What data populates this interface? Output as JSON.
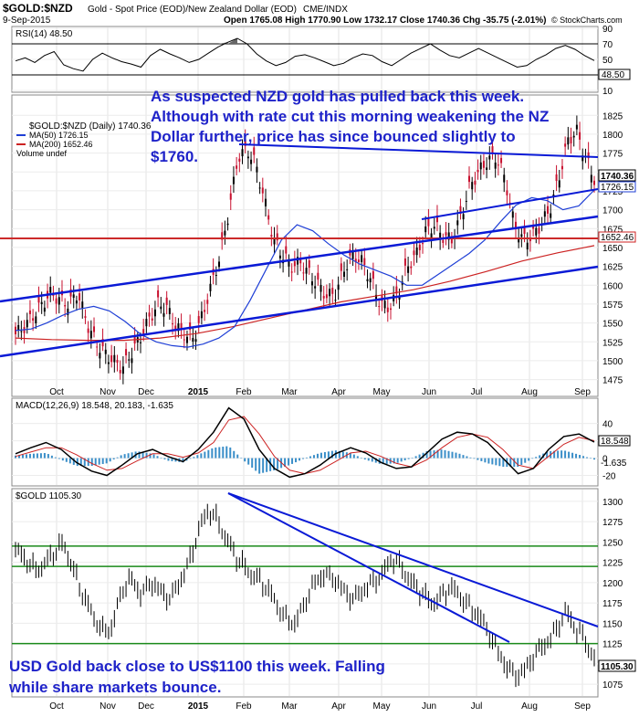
{
  "header": {
    "ticker": "$GOLD:$NZD",
    "description": "Gold - Spot Price (EOD)/New Zealand Dollar (EOD)",
    "exchange": "CME/INDX",
    "date": "9-Sep-2015",
    "ohlc": "Open 1765.08  High 1770.90  Low 1732.17  Close 1740.36  Chg -35.75 (-2.01%)",
    "brand": "© StockCharts.com"
  },
  "colors": {
    "ma50": "#1f3fd6",
    "ma200": "#cc2222",
    "trendline": "#0a1ad6",
    "support": "#cc2a2a",
    "green_line": "#1a8a1a",
    "annotation": "#1e22c9",
    "macd_hist": "#3a8ec8"
  },
  "x_labels": [
    "Oct",
    "Nov",
    "Dec",
    "2015",
    "Feb",
    "Mar",
    "Apr",
    "May",
    "Jun",
    "Jul",
    "Aug",
    "Sep"
  ],
  "chart_data": [
    {
      "type": "line",
      "panel": "rsi",
      "legend": "RSI(14) 48.50",
      "last_value": "48.50",
      "ylim": [
        10,
        90
      ],
      "y_ticks": [
        "90",
        "70",
        "50",
        "30",
        "10"
      ],
      "levels": [
        30,
        70
      ],
      "series": [
        {
          "name": "RSI(14)",
          "values": [
            48,
            52,
            46,
            55,
            60,
            43,
            38,
            35,
            50,
            58,
            52,
            47,
            44,
            40,
            55,
            63,
            57,
            52,
            46,
            50,
            58,
            66,
            72,
            77,
            70,
            57,
            48,
            42,
            46,
            54,
            56,
            52,
            47,
            42,
            45,
            52,
            57,
            55,
            47,
            42,
            50,
            58,
            64,
            70,
            62,
            55,
            52,
            58,
            64,
            58,
            52,
            46,
            40,
            42,
            50,
            56,
            64,
            68,
            63,
            55,
            48.5
          ]
        }
      ]
    },
    {
      "type": "line",
      "panel": "price_nzd",
      "legend": [
        "$GOLD:$NZD (Daily) 1740.36",
        "MA(50) 1726.15",
        "MA(200) 1652.46",
        "Volume undef"
      ],
      "ylim": [
        1460,
        1835
      ],
      "y_ticks": [
        "1825",
        "1800",
        "1775",
        "1750",
        "1725",
        "1700",
        "1675",
        "1650",
        "1625",
        "1600",
        "1575",
        "1550",
        "1525",
        "1500",
        "1475"
      ],
      "labels_right": [
        "1740.36",
        "1726.15",
        "1652.46"
      ],
      "series": [
        {
          "name": "$GOLD:$NZD",
          "values": [
            1535,
            1545,
            1560,
            1575,
            1590,
            1580,
            1575,
            1590,
            1550,
            1525,
            1510,
            1500,
            1490,
            1510,
            1530,
            1555,
            1575,
            1570,
            1545,
            1535,
            1530,
            1560,
            1600,
            1640,
            1700,
            1770,
            1780,
            1760,
            1710,
            1660,
            1640,
            1625,
            1630,
            1615,
            1600,
            1585,
            1590,
            1625,
            1640,
            1630,
            1605,
            1575,
            1570,
            1590,
            1625,
            1640,
            1670,
            1680,
            1665,
            1660,
            1690,
            1730,
            1750,
            1765,
            1770,
            1740,
            1680,
            1660,
            1665,
            1680,
            1700,
            1740,
            1790,
            1805,
            1770,
            1740.36
          ]
        },
        {
          "name": "MA(50)",
          "values": [
            1540,
            1542,
            1550,
            1560,
            1568,
            1572,
            1566,
            1552,
            1535,
            1525,
            1520,
            1518,
            1522,
            1530,
            1545,
            1580,
            1620,
            1660,
            1680,
            1672,
            1655,
            1640,
            1628,
            1620,
            1612,
            1600,
            1600,
            1614,
            1628,
            1642,
            1660,
            1684,
            1706,
            1716,
            1712,
            1700,
            1705,
            1726.15
          ]
        },
        {
          "name": "MA(200)",
          "values": [
            1530,
            1528,
            1527,
            1527,
            1530,
            1536,
            1545,
            1556,
            1567,
            1578,
            1586,
            1594,
            1605,
            1618,
            1632,
            1643,
            1652.46
          ]
        }
      ]
    },
    {
      "type": "line",
      "panel": "macd",
      "legend": "MACD(12,26,9) 18.548, 20.183, -1.635",
      "labels_right": [
        "18.548",
        "-1.635"
      ],
      "ylim": [
        -30,
        65
      ],
      "y_ticks": [
        "40",
        "20",
        "0",
        "-20"
      ],
      "series": [
        {
          "name": "MACD",
          "values": [
            5,
            12,
            18,
            10,
            -5,
            -15,
            -20,
            -8,
            5,
            10,
            2,
            -4,
            10,
            30,
            58,
            45,
            10,
            -12,
            -22,
            -18,
            -8,
            5,
            12,
            6,
            -5,
            -12,
            -10,
            6,
            22,
            30,
            28,
            18,
            0,
            -18,
            -12,
            10,
            25,
            28,
            18.548
          ]
        },
        {
          "name": "Signal",
          "values": [
            2,
            7,
            12,
            12,
            4,
            -6,
            -14,
            -12,
            -3,
            5,
            5,
            1,
            6,
            18,
            44,
            48,
            28,
            2,
            -14,
            -18,
            -14,
            -4,
            6,
            8,
            2,
            -6,
            -10,
            -2,
            12,
            24,
            28,
            24,
            10,
            -8,
            -12,
            2,
            16,
            24,
            20.183
          ]
        },
        {
          "name": "Histogram",
          "values": [
            3,
            5,
            6,
            -2,
            -9,
            -9,
            -6,
            4,
            8,
            5,
            -3,
            -5,
            4,
            12,
            14,
            -3,
            -18,
            -14,
            -8,
            0,
            6,
            9,
            6,
            -2,
            -7,
            -6,
            0,
            8,
            10,
            6,
            0,
            -6,
            -10,
            -10,
            0,
            8,
            9,
            4,
            -1.635
          ]
        }
      ]
    },
    {
      "type": "line",
      "panel": "price_usd",
      "legend": "$GOLD 1105.30",
      "ylim": [
        1065,
        1310
      ],
      "y_ticks": [
        "1300",
        "1275",
        "1250",
        "1225",
        "1200",
        "1175",
        "1150",
        "1125",
        "1100",
        "1075"
      ],
      "labels_right": [
        "1105.30"
      ],
      "levels": [
        1125,
        1220,
        1245
      ],
      "series": [
        {
          "name": "$GOLD",
          "values": [
            1240,
            1230,
            1215,
            1222,
            1238,
            1248,
            1215,
            1185,
            1160,
            1140,
            1145,
            1190,
            1205,
            1185,
            1200,
            1190,
            1180,
            1200,
            1225,
            1265,
            1290,
            1275,
            1250,
            1230,
            1215,
            1205,
            1195,
            1175,
            1155,
            1150,
            1175,
            1200,
            1210,
            1205,
            1190,
            1180,
            1190,
            1200,
            1210,
            1230,
            1220,
            1200,
            1190,
            1175,
            1180,
            1195,
            1185,
            1170,
            1160,
            1140,
            1115,
            1095,
            1085,
            1095,
            1115,
            1125,
            1140,
            1165,
            1145,
            1130,
            1105.3
          ]
        }
      ]
    }
  ],
  "annotations": {
    "nzd_text": [
      "As suspected NZD gold has pulled back this week.",
      "Although with rate cut this morning weakening the NZ",
      "Dollar further, price has since bounced slightly to",
      "$1760."
    ],
    "usd_text": [
      "USD Gold back close to US$1100 this week. Falling",
      "while share markets bounce."
    ]
  }
}
